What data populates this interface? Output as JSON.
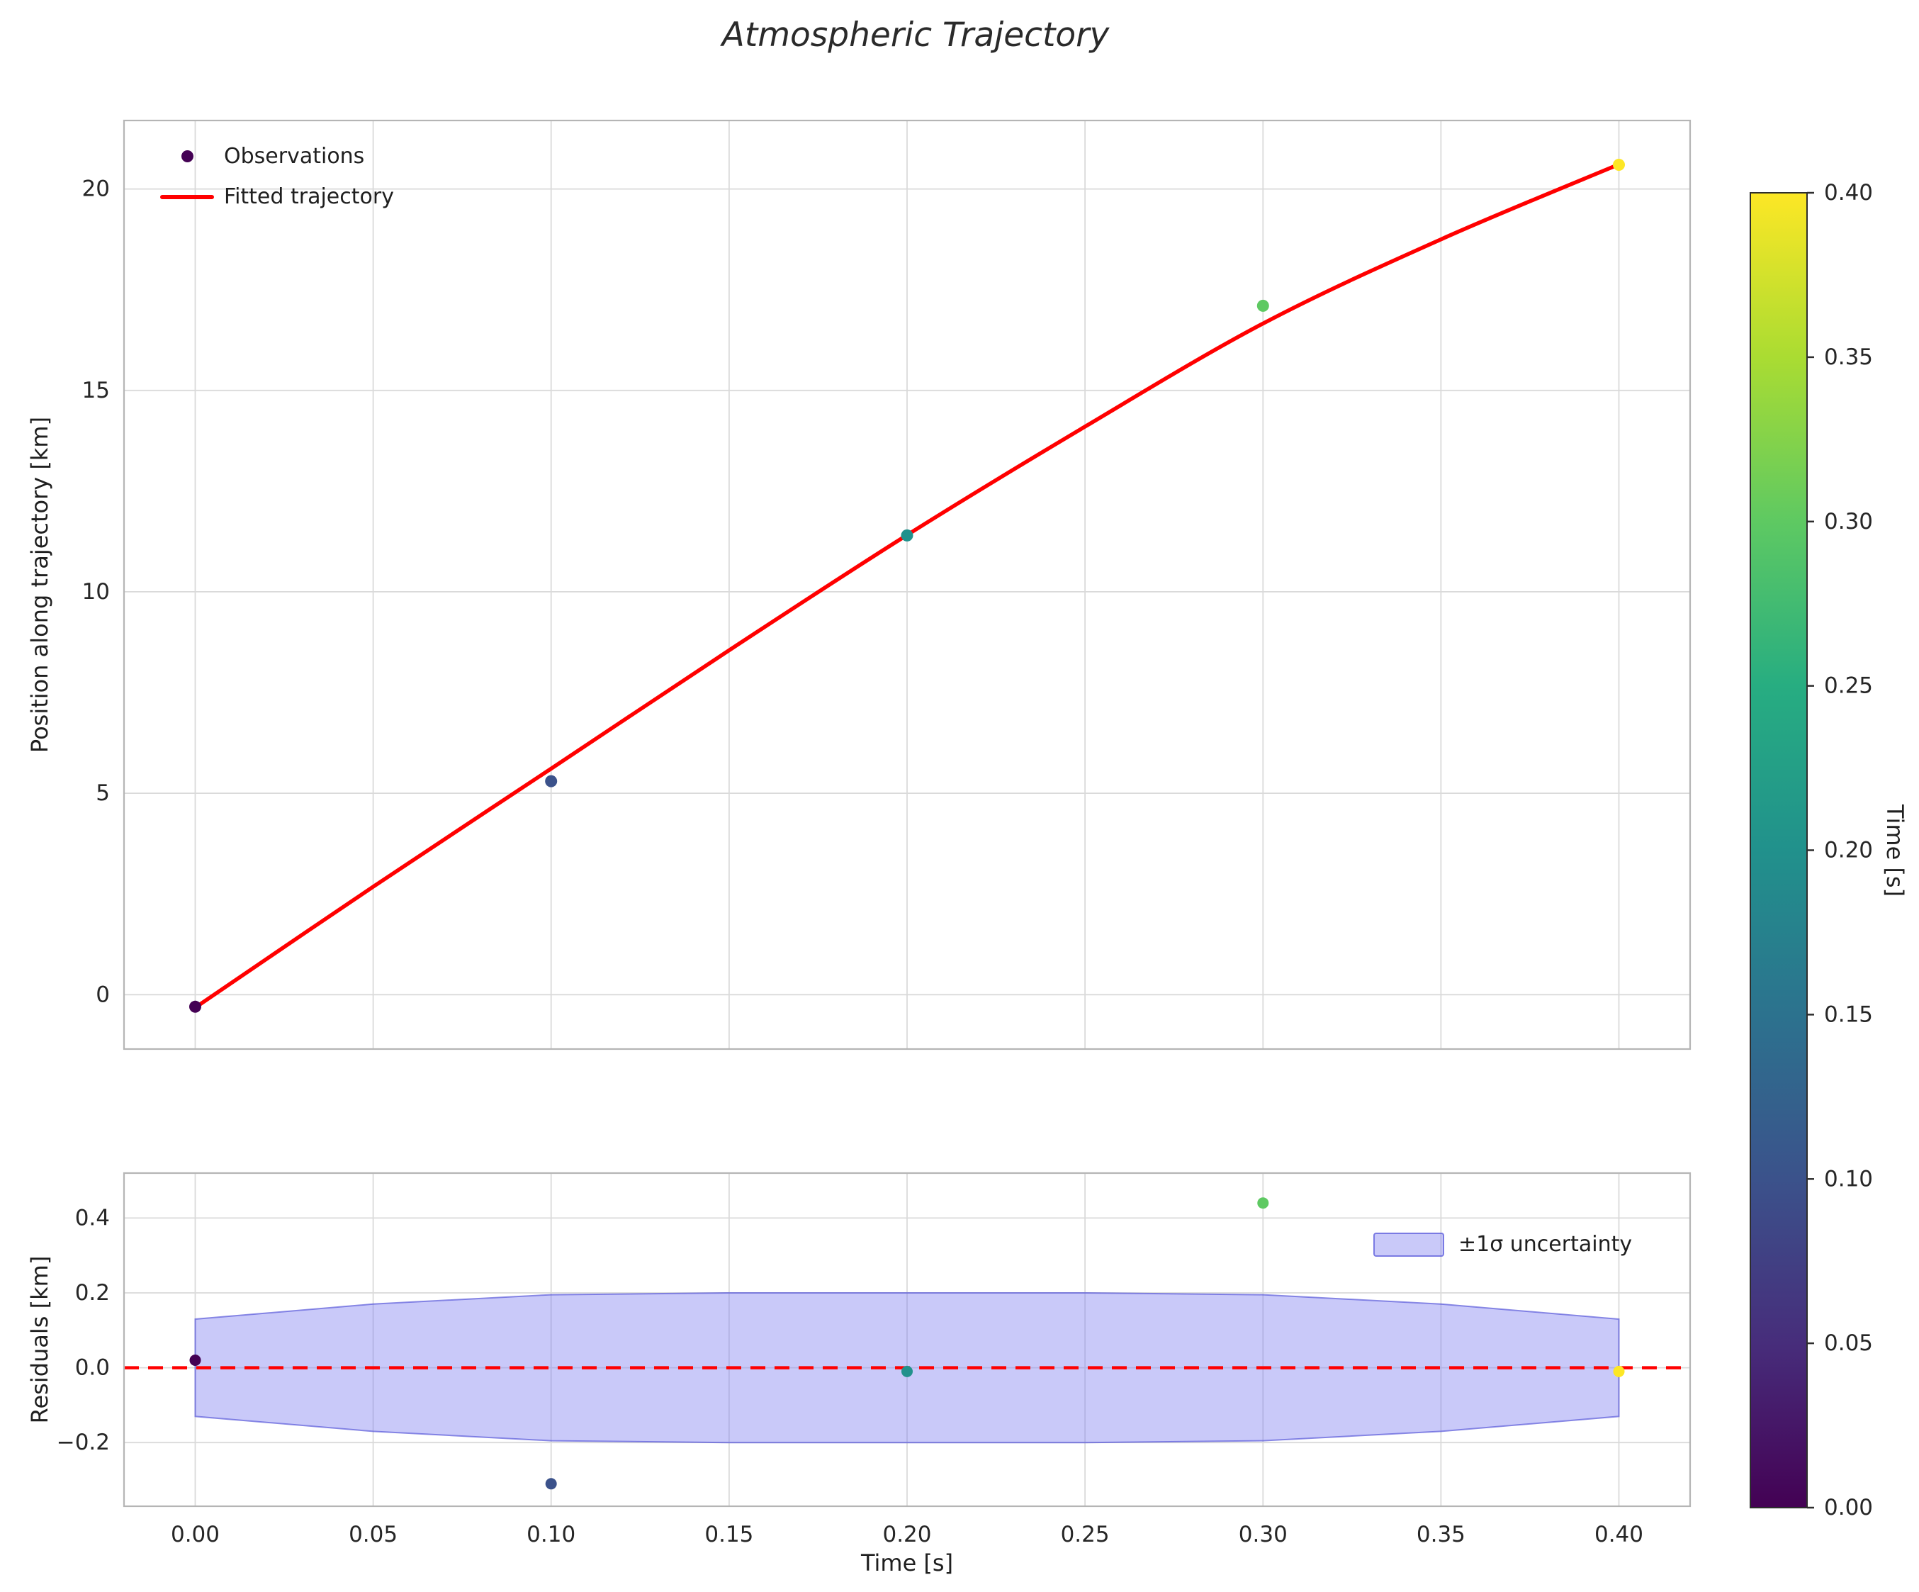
{
  "chart_data": [
    {
      "type": "scatter",
      "panel": "main",
      "title": "Atmospheric Trajectory",
      "ylabel": "Position along trajectory [km]",
      "xlim": [
        -0.02,
        0.42
      ],
      "ylim": [
        -1.35,
        21.7
      ],
      "xticks": [
        0.0,
        0.05,
        0.1,
        0.15,
        0.2,
        0.25,
        0.3,
        0.35,
        0.4
      ],
      "yticks": [
        0,
        5,
        10,
        15,
        20
      ],
      "ytick_labels": [
        "0",
        "5",
        "10",
        "15",
        "20"
      ],
      "grid": true,
      "legend_position": "upper left",
      "series": [
        {
          "name": "Observations",
          "type": "scatter",
          "x": [
            0.0,
            0.1,
            0.2,
            0.3,
            0.4
          ],
          "y": [
            -0.3,
            5.3,
            11.4,
            17.1,
            20.6
          ],
          "colors": [
            "#440154",
            "#3b528b",
            "#21918c",
            "#5ec962",
            "#fde725"
          ],
          "colormap": "viridis",
          "color_by": "Time [s]"
        },
        {
          "name": "Fitted trajectory",
          "type": "line",
          "color": "#ff0000",
          "x": [
            0.0,
            0.05,
            0.1,
            0.15,
            0.2,
            0.25,
            0.3,
            0.35,
            0.4
          ],
          "y": [
            -0.32,
            2.68,
            5.61,
            8.55,
            11.41,
            14.1,
            16.66,
            18.75,
            20.61
          ]
        }
      ]
    },
    {
      "type": "scatter",
      "panel": "residuals",
      "ylabel": "Residuals [km]",
      "xlabel": "Time [s]",
      "xlim": [
        -0.02,
        0.42
      ],
      "ylim": [
        -0.37,
        0.52
      ],
      "xticks": [
        0.0,
        0.05,
        0.1,
        0.15,
        0.2,
        0.25,
        0.3,
        0.35,
        0.4
      ],
      "xtick_labels": [
        "0.00",
        "0.05",
        "0.10",
        "0.15",
        "0.20",
        "0.25",
        "0.30",
        "0.35",
        "0.40"
      ],
      "yticks": [
        -0.2,
        0.0,
        0.2,
        0.4
      ],
      "ytick_labels": [
        "−0.2",
        "0.0",
        "0.2",
        "0.4"
      ],
      "grid": true,
      "legend_position": "upper right",
      "points": {
        "x": [
          0.0,
          0.1,
          0.2,
          0.3,
          0.4
        ],
        "y": [
          0.02,
          -0.31,
          -0.01,
          0.44,
          -0.01
        ],
        "colors": [
          "#440154",
          "#3b528b",
          "#21918c",
          "#5ec962",
          "#fde725"
        ]
      },
      "zero_line": {
        "y": 0,
        "color": "#ff0000",
        "style": "dashed"
      },
      "band": {
        "label": "±1σ uncertainty",
        "x": [
          0.0,
          0.05,
          0.1,
          0.15,
          0.2,
          0.25,
          0.3,
          0.35,
          0.4
        ],
        "sigma": [
          0.13,
          0.17,
          0.195,
          0.2,
          0.2,
          0.2,
          0.195,
          0.17,
          0.13
        ],
        "fill": "rgba(127,127,241,0.42)",
        "edge": "rgba(80,80,215,0.65)"
      }
    },
    {
      "type": "colorbar",
      "label": "Time [s]",
      "vmin": 0.0,
      "vmax": 0.4,
      "tick_labels": [
        "0.00",
        "0.05",
        "0.10",
        "0.15",
        "0.20",
        "0.25",
        "0.30",
        "0.35",
        "0.40"
      ],
      "colormap": "viridis",
      "stops": [
        "#440154",
        "#472d7b",
        "#3b528b",
        "#2c728e",
        "#21918c",
        "#27ad81",
        "#5ec962",
        "#aadc32",
        "#fde725"
      ]
    }
  ]
}
